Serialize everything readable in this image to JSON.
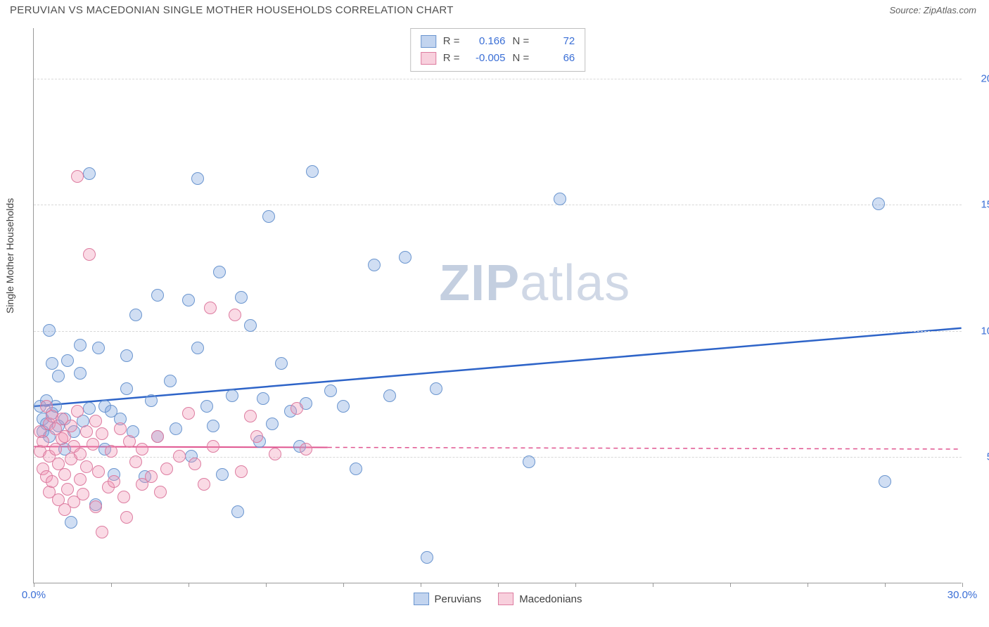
{
  "header": {
    "title": "PERUVIAN VS MACEDONIAN SINGLE MOTHER HOUSEHOLDS CORRELATION CHART",
    "source": "Source: ZipAtlas.com"
  },
  "chart": {
    "type": "scatter",
    "ylabel": "Single Mother Households",
    "xlim": [
      0,
      30
    ],
    "ylim": [
      0,
      22
    ],
    "x_ticks": [
      0,
      2.5,
      5,
      7.5,
      10,
      12.5,
      15,
      17.5,
      20,
      22.5,
      25,
      27.5,
      30
    ],
    "x_tick_labels_visible": {
      "0": "0.0%",
      "30": "30.0%"
    },
    "y_gridlines": [
      5,
      10,
      15,
      20
    ],
    "y_tick_labels": {
      "5": "5.0%",
      "10": "10.0%",
      "15": "15.0%",
      "20": "20.0%"
    },
    "background_color": "#ffffff",
    "grid_color": "#d8d8d8",
    "axis_label_color": "#3b6fd6",
    "bubble_radius": 9,
    "series": [
      {
        "name": "Peruvians",
        "color_fill": "rgba(120,160,220,0.35)",
        "color_stroke": "#6a95cf",
        "legend_swatch": "blue",
        "trend": {
          "x1": 0,
          "y1": 7.0,
          "x2": 30,
          "y2": 10.1,
          "stroke": "#2e64c8",
          "width": 2.5,
          "solid_until_x": 30
        },
        "points": [
          [
            0.2,
            7.0
          ],
          [
            0.3,
            6.0
          ],
          [
            0.3,
            6.5
          ],
          [
            0.4,
            7.2
          ],
          [
            0.4,
            6.3
          ],
          [
            0.5,
            5.8
          ],
          [
            0.5,
            10.0
          ],
          [
            0.6,
            8.7
          ],
          [
            0.6,
            6.7
          ],
          [
            0.7,
            7.0
          ],
          [
            0.8,
            6.2
          ],
          [
            0.8,
            8.2
          ],
          [
            1.0,
            6.5
          ],
          [
            1.0,
            5.3
          ],
          [
            1.1,
            8.8
          ],
          [
            1.2,
            2.4
          ],
          [
            1.3,
            6.0
          ],
          [
            1.5,
            8.3
          ],
          [
            1.5,
            9.4
          ],
          [
            1.6,
            6.4
          ],
          [
            1.8,
            16.2
          ],
          [
            1.8,
            6.9
          ],
          [
            2.0,
            3.1
          ],
          [
            2.1,
            9.3
          ],
          [
            2.3,
            5.3
          ],
          [
            2.3,
            7.0
          ],
          [
            2.5,
            6.8
          ],
          [
            2.6,
            4.3
          ],
          [
            2.8,
            6.5
          ],
          [
            3.0,
            7.7
          ],
          [
            3.0,
            9.0
          ],
          [
            3.2,
            6.0
          ],
          [
            3.3,
            10.6
          ],
          [
            3.6,
            4.2
          ],
          [
            3.8,
            7.2
          ],
          [
            4.0,
            11.4
          ],
          [
            4.0,
            5.8
          ],
          [
            4.4,
            8.0
          ],
          [
            4.6,
            6.1
          ],
          [
            5.0,
            11.2
          ],
          [
            5.1,
            5.0
          ],
          [
            5.3,
            16.0
          ],
          [
            5.3,
            9.3
          ],
          [
            5.6,
            7.0
          ],
          [
            5.8,
            6.2
          ],
          [
            6.0,
            12.3
          ],
          [
            6.1,
            4.3
          ],
          [
            6.4,
            7.4
          ],
          [
            6.6,
            2.8
          ],
          [
            6.7,
            11.3
          ],
          [
            7.0,
            10.2
          ],
          [
            7.3,
            5.6
          ],
          [
            7.4,
            7.3
          ],
          [
            7.6,
            14.5
          ],
          [
            7.7,
            6.3
          ],
          [
            8.0,
            8.7
          ],
          [
            8.3,
            6.8
          ],
          [
            8.6,
            5.4
          ],
          [
            8.8,
            7.1
          ],
          [
            9.0,
            16.3
          ],
          [
            9.6,
            7.6
          ],
          [
            10.0,
            7.0
          ],
          [
            10.4,
            4.5
          ],
          [
            11.0,
            12.6
          ],
          [
            11.5,
            7.4
          ],
          [
            12.0,
            12.9
          ],
          [
            12.7,
            1.0
          ],
          [
            13.0,
            7.7
          ],
          [
            16.0,
            4.8
          ],
          [
            17.0,
            15.2
          ],
          [
            27.3,
            15.0
          ],
          [
            27.5,
            4.0
          ]
        ]
      },
      {
        "name": "Macedonians",
        "color_fill": "rgba(240,150,180,0.35)",
        "color_stroke": "#dd7ca0",
        "legend_swatch": "pink",
        "trend": {
          "x1": 0,
          "y1": 5.4,
          "x2": 30,
          "y2": 5.3,
          "stroke": "#e05590",
          "width": 2,
          "solid_until_x": 9.5
        },
        "points": [
          [
            0.2,
            5.2
          ],
          [
            0.2,
            6.0
          ],
          [
            0.3,
            4.5
          ],
          [
            0.3,
            5.6
          ],
          [
            0.4,
            7.0
          ],
          [
            0.4,
            4.2
          ],
          [
            0.5,
            3.6
          ],
          [
            0.5,
            6.3
          ],
          [
            0.5,
            5.0
          ],
          [
            0.6,
            6.6
          ],
          [
            0.6,
            4.0
          ],
          [
            0.7,
            5.3
          ],
          [
            0.7,
            6.1
          ],
          [
            0.8,
            3.3
          ],
          [
            0.8,
            4.7
          ],
          [
            0.9,
            5.7
          ],
          [
            0.9,
            6.5
          ],
          [
            1.0,
            2.9
          ],
          [
            1.0,
            4.3
          ],
          [
            1.0,
            5.8
          ],
          [
            1.1,
            3.7
          ],
          [
            1.2,
            6.2
          ],
          [
            1.2,
            4.9
          ],
          [
            1.3,
            5.4
          ],
          [
            1.3,
            3.2
          ],
          [
            1.4,
            16.1
          ],
          [
            1.4,
            6.8
          ],
          [
            1.5,
            4.1
          ],
          [
            1.5,
            5.1
          ],
          [
            1.6,
            3.5
          ],
          [
            1.7,
            6.0
          ],
          [
            1.7,
            4.6
          ],
          [
            1.8,
            13.0
          ],
          [
            1.9,
            5.5
          ],
          [
            2.0,
            3.0
          ],
          [
            2.0,
            6.4
          ],
          [
            2.1,
            4.4
          ],
          [
            2.2,
            5.9
          ],
          [
            2.2,
            2.0
          ],
          [
            2.4,
            3.8
          ],
          [
            2.5,
            5.2
          ],
          [
            2.6,
            4.0
          ],
          [
            2.8,
            6.1
          ],
          [
            2.9,
            3.4
          ],
          [
            3.0,
            2.6
          ],
          [
            3.1,
            5.6
          ],
          [
            3.3,
            4.8
          ],
          [
            3.5,
            3.9
          ],
          [
            3.5,
            5.3
          ],
          [
            3.8,
            4.2
          ],
          [
            4.0,
            5.8
          ],
          [
            4.1,
            3.6
          ],
          [
            4.3,
            4.5
          ],
          [
            4.7,
            5.0
          ],
          [
            5.0,
            6.7
          ],
          [
            5.2,
            4.7
          ],
          [
            5.5,
            3.9
          ],
          [
            5.7,
            10.9
          ],
          [
            5.8,
            5.4
          ],
          [
            6.5,
            10.6
          ],
          [
            6.7,
            4.4
          ],
          [
            7.0,
            6.6
          ],
          [
            7.2,
            5.8
          ],
          [
            7.8,
            5.1
          ],
          [
            8.5,
            6.9
          ],
          [
            8.8,
            5.3
          ]
        ]
      }
    ],
    "legend_top": [
      {
        "swatch": "blue",
        "r_label": "R =",
        "r_val": "0.166",
        "n_label": "N =",
        "n_val": "72"
      },
      {
        "swatch": "pink",
        "r_label": "R =",
        "r_val": "-0.005",
        "n_label": "N =",
        "n_val": "66"
      }
    ],
    "legend_bottom": [
      {
        "swatch": "blue",
        "label": "Peruvians"
      },
      {
        "swatch": "pink",
        "label": "Macedonians"
      }
    ],
    "watermark": {
      "bold": "ZIP",
      "rest": "atlas"
    }
  }
}
